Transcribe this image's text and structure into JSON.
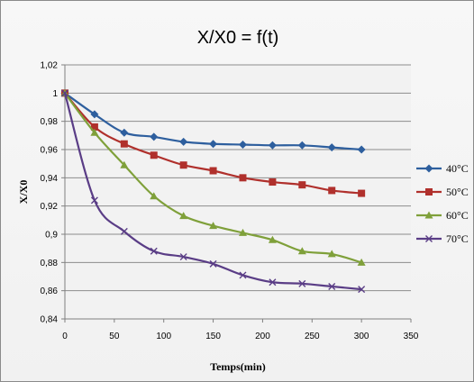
{
  "chart_data": {
    "type": "line",
    "title": "X/X0 = f(t)",
    "xlabel": "Temps(min)",
    "ylabel": "X/X0",
    "xlim": [
      0,
      350
    ],
    "ylim": [
      0.84,
      1.02
    ],
    "x_ticks": [
      "0",
      "50",
      "100",
      "150",
      "200",
      "250",
      "300",
      "350"
    ],
    "y_ticks": [
      "0,84",
      "0,86",
      "0,88",
      "0,9",
      "0,92",
      "0,94",
      "0,96",
      "0,98",
      "1",
      "1,02"
    ],
    "grid": "horizontal",
    "legend_position": "right",
    "x": [
      0,
      30,
      60,
      90,
      120,
      150,
      180,
      210,
      240,
      270,
      300
    ],
    "series": [
      {
        "name": "40°C",
        "color": "#2e5f9e",
        "marker": "diamond",
        "values": [
          1.0,
          0.985,
          0.972,
          0.969,
          0.9655,
          0.964,
          0.9635,
          0.963,
          0.963,
          0.9615,
          0.96
        ]
      },
      {
        "name": "50°C",
        "color": "#b0302c",
        "marker": "square",
        "values": [
          1.0,
          0.976,
          0.964,
          0.956,
          0.949,
          0.945,
          0.94,
          0.937,
          0.935,
          0.931,
          0.929
        ]
      },
      {
        "name": "60°C",
        "color": "#7fa03a",
        "marker": "triangle",
        "values": [
          1.0,
          0.972,
          0.949,
          0.927,
          0.913,
          0.906,
          0.901,
          0.896,
          0.888,
          0.886,
          0.88
        ]
      },
      {
        "name": "70°C",
        "color": "#5a3d86",
        "marker": "x",
        "values": [
          1.0,
          0.924,
          0.902,
          0.888,
          0.884,
          0.879,
          0.871,
          0.866,
          0.865,
          0.863,
          0.861
        ]
      }
    ]
  }
}
